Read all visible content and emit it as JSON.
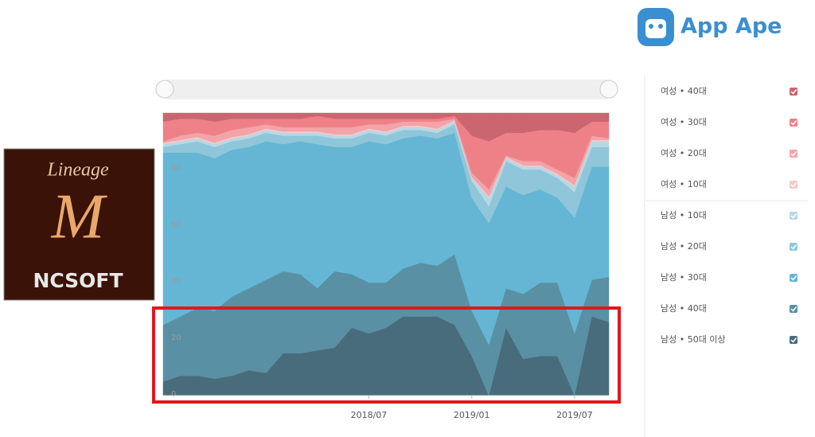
{
  "brand": {
    "name": "App Ape"
  },
  "app_icon": {
    "title": "Lineage",
    "publisher": "NCSOFT"
  },
  "chart_data": {
    "type": "stacked_area",
    "x": [
      "2017/07",
      "2017/08",
      "2017/09",
      "2017/10",
      "2017/11",
      "2017/12",
      "2018/01",
      "2018/02",
      "2018/03",
      "2018/04",
      "2018/05",
      "2018/06",
      "2018/07",
      "2018/08",
      "2018/09",
      "2018/10",
      "2018/11",
      "2018/12",
      "2019/01",
      "2019/02",
      "2019/03",
      "2019/04",
      "2019/05",
      "2019/06",
      "2019/07",
      "2019/08",
      "2019/09"
    ],
    "xticks": [
      "2018/07",
      "2019/01",
      "2019/07"
    ],
    "ylim": [
      0,
      100
    ],
    "yticks": [
      0,
      20,
      40,
      60,
      80
    ],
    "grid": false,
    "series": [
      {
        "name": "여성 • 40대",
        "color": "#c9666f",
        "values": [
          3,
          2,
          2,
          3,
          2,
          2,
          2,
          2,
          2,
          1,
          2,
          2,
          2,
          2,
          2,
          2,
          2,
          1,
          8,
          10,
          7,
          7,
          6,
          6,
          7,
          3,
          3
        ]
      },
      {
        "name": "여성 • 30대",
        "color": "#ee8188",
        "values": [
          7,
          6,
          5,
          5,
          4,
          3,
          2,
          3,
          3,
          4,
          3,
          3,
          2,
          2,
          1,
          1,
          1,
          1,
          13,
          17,
          8,
          10,
          11,
          14,
          16,
          5,
          6
        ]
      },
      {
        "name": "여성 • 20대",
        "color": "#f2a4a8",
        "values": [
          0.5,
          1.5,
          1.5,
          2.5,
          2.5,
          2.5,
          1.5,
          1.5,
          1.5,
          1.5,
          2.5,
          2.5,
          1.5,
          2.5,
          1.5,
          1.5,
          2.5,
          0.5,
          1.5,
          2.5,
          0.5,
          1.5,
          1.5,
          1.5,
          2.5,
          1.5,
          0.5
        ]
      },
      {
        "name": "여성 • 10대",
        "color": "#f5c9cb",
        "values": [
          0.5,
          0.5,
          0.5,
          0.5,
          0.5,
          0.5,
          0.5,
          0.5,
          0.5,
          0.5,
          0.5,
          0.5,
          0.5,
          0.5,
          0.5,
          0.5,
          0.5,
          0.5,
          0.5,
          0.5,
          0.5,
          0.5,
          0.5,
          0.5,
          0.5,
          0.5,
          0.5
        ]
      },
      {
        "name": "남성 • 10대",
        "color": "#b7d8e5",
        "values": [
          1,
          1,
          1,
          1,
          1,
          1,
          1,
          1,
          1,
          1,
          1,
          1,
          1,
          1,
          1,
          1,
          1,
          1,
          1,
          3,
          1,
          1,
          1,
          1,
          2,
          2,
          2
        ]
      },
      {
        "name": "남성 • 20대",
        "color": "#8fc6da",
        "values": [
          2,
          3,
          4,
          4,
          3,
          3,
          3,
          3,
          2,
          3,
          3,
          3,
          3,
          3,
          3,
          2,
          2,
          3,
          6,
          6,
          9,
          9,
          7,
          7,
          9,
          7,
          7
        ]
      },
      {
        "name": "남성 • 30대",
        "color": "#64b6d4",
        "values": [
          61,
          58,
          55,
          54,
          52,
          50,
          49,
          45,
          47,
          51,
          44,
          45,
          50,
          49,
          46,
          45,
          45,
          43,
          40,
          43,
          36,
          35,
          33,
          30,
          41,
          40,
          39
        ]
      },
      {
        "name": "남성 • 40대",
        "color": "#5990a3",
        "values": [
          20,
          21,
          24,
          24,
          28,
          29,
          33,
          29,
          28,
          22,
          27,
          19,
          18,
          16,
          17,
          19,
          18,
          25,
          16,
          18,
          14,
          23,
          26,
          26,
          22,
          13,
          16
        ]
      },
      {
        "name": "남성 • 50대 이상",
        "color": "#486c7b",
        "values": [
          5,
          7,
          7,
          6,
          7,
          9,
          8,
          15,
          15,
          16,
          17,
          24,
          22,
          24,
          28,
          28,
          28,
          25,
          14,
          0,
          24,
          13,
          14,
          14,
          0,
          28,
          26
        ]
      }
    ]
  }
}
